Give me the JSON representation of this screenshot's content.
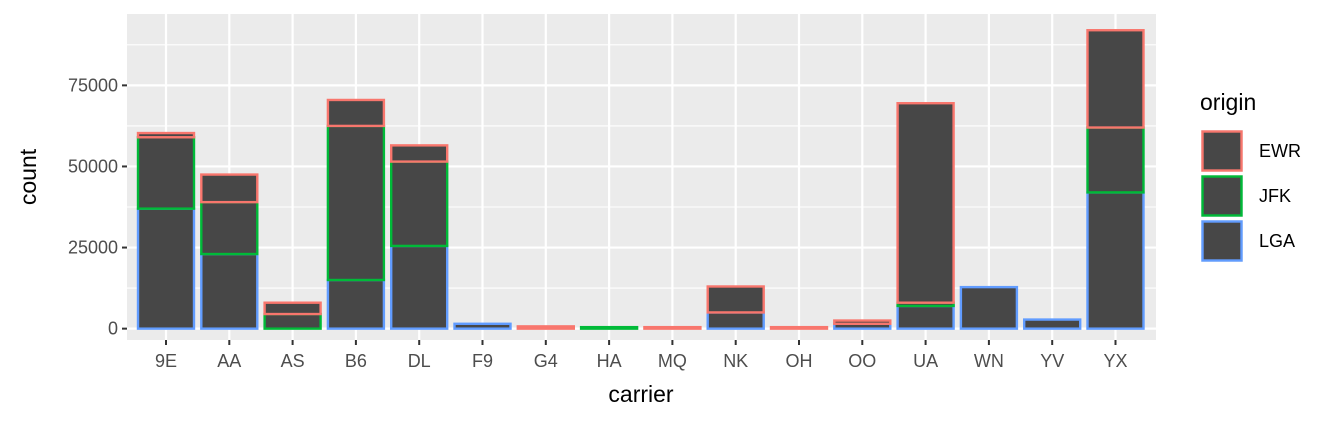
{
  "chart_data": {
    "type": "bar",
    "stacked": true,
    "xlabel": "carrier",
    "ylabel": "count",
    "categories": [
      "9E",
      "AA",
      "AS",
      "B6",
      "DL",
      "F9",
      "G4",
      "HA",
      "MQ",
      "NK",
      "OH",
      "OO",
      "UA",
      "WN",
      "YV",
      "YX"
    ],
    "series": [
      {
        "name": "EWR",
        "color": "#f8766d",
        "values": [
          1300,
          8500,
          3500,
          8000,
          5000,
          0,
          700,
          0,
          300,
          8000,
          200,
          1000,
          61500,
          0,
          0,
          30000
        ]
      },
      {
        "name": "JFK",
        "color": "#00ba38",
        "values": [
          22000,
          16000,
          4500,
          47500,
          26000,
          0,
          0,
          400,
          0,
          0,
          0,
          0,
          1000,
          0,
          0,
          20000
        ]
      },
      {
        "name": "LGA",
        "color": "#619cff",
        "values": [
          37000,
          23000,
          0,
          15000,
          25500,
          1500,
          0,
          0,
          0,
          5000,
          0,
          1500,
          7000,
          12800,
          2800,
          42000
        ]
      }
    ],
    "ylim": [
      -3500,
      97000
    ],
    "y_ticks": [
      0,
      25000,
      50000,
      75000
    ],
    "y_tick_labels": [
      "0",
      "25000",
      "50000",
      "75000"
    ],
    "bar_fill": "#474747",
    "panel_background": "#ebebeb",
    "grid": true,
    "legend_title": "origin",
    "legend_position": "right"
  }
}
